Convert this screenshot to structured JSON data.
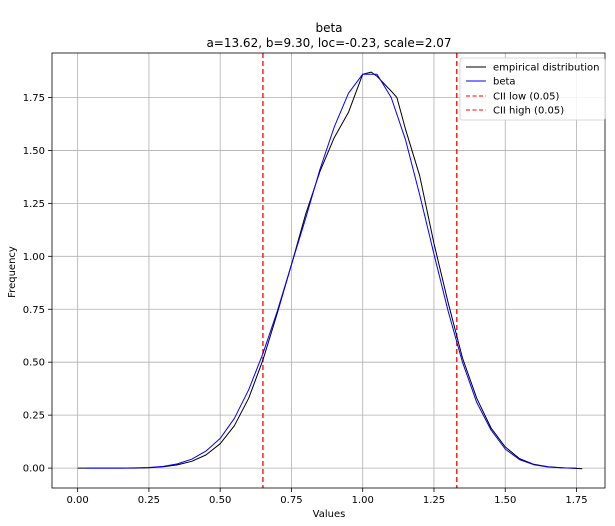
{
  "chart_data": {
    "type": "line",
    "title": "beta",
    "subtitle": "a=13.62, b=9.30, loc=-0.23, scale=2.07",
    "xlabel": "Values",
    "ylabel": "Frequency",
    "xlim": [
      -0.09,
      1.85
    ],
    "ylim": [
      -0.094,
      1.96
    ],
    "grid": true,
    "legend_position": "top-right",
    "x_ticks": [
      0.0,
      0.25,
      0.5,
      0.75,
      1.0,
      1.25,
      1.5,
      1.75
    ],
    "x_tick_labels": [
      "0.00",
      "0.25",
      "0.50",
      "0.75",
      "1.00",
      "1.25",
      "1.50",
      "1.75"
    ],
    "y_ticks": [
      0.0,
      0.25,
      0.5,
      0.75,
      1.0,
      1.25,
      1.5,
      1.75
    ],
    "y_tick_labels": [
      "0.00",
      "0.25",
      "0.50",
      "0.75",
      "1.00",
      "1.25",
      "1.50",
      "1.75"
    ],
    "series": [
      {
        "name": "empirical distribution",
        "color": "#000000",
        "style": "solid",
        "x": [
          0.0,
          0.05,
          0.1,
          0.15,
          0.2,
          0.25,
          0.3,
          0.35,
          0.4,
          0.45,
          0.5,
          0.55,
          0.6,
          0.65,
          0.7,
          0.75,
          0.8,
          0.85,
          0.9,
          0.95,
          1.0,
          1.03,
          1.05,
          1.1,
          1.12,
          1.15,
          1.2,
          1.25,
          1.3,
          1.35,
          1.4,
          1.45,
          1.5,
          1.55,
          1.6,
          1.65,
          1.7,
          1.77
        ],
        "y": [
          0.0,
          0.0,
          0.0,
          0.0,
          0.0,
          0.002,
          0.006,
          0.015,
          0.032,
          0.062,
          0.115,
          0.2,
          0.33,
          0.51,
          0.73,
          0.96,
          1.2,
          1.4,
          1.56,
          1.68,
          1.86,
          1.87,
          1.85,
          1.78,
          1.75,
          1.6,
          1.38,
          1.06,
          0.78,
          0.52,
          0.33,
          0.19,
          0.1,
          0.045,
          0.018,
          0.006,
          0.002,
          -0.003
        ]
      },
      {
        "name": "beta",
        "color": "#0000ff",
        "style": "solid",
        "x": [
          0.03,
          0.1,
          0.15,
          0.2,
          0.25,
          0.3,
          0.35,
          0.4,
          0.45,
          0.5,
          0.55,
          0.6,
          0.65,
          0.7,
          0.75,
          0.8,
          0.85,
          0.9,
          0.95,
          1.0,
          1.05,
          1.1,
          1.15,
          1.2,
          1.25,
          1.3,
          1.35,
          1.4,
          1.45,
          1.5,
          1.55,
          1.6,
          1.65,
          1.7,
          1.75
        ],
        "y": [
          0.0,
          0.0,
          0.0,
          0.001,
          0.003,
          0.008,
          0.02,
          0.042,
          0.08,
          0.14,
          0.235,
          0.37,
          0.54,
          0.74,
          0.96,
          1.18,
          1.41,
          1.61,
          1.77,
          1.86,
          1.86,
          1.75,
          1.55,
          1.29,
          1.01,
          0.74,
          0.5,
          0.31,
          0.18,
          0.09,
          0.04,
          0.016,
          0.005,
          0.001,
          0.0
        ]
      }
    ],
    "vlines": [
      {
        "name": "CII low (0.05)",
        "x": 0.65,
        "color": "#ff0000",
        "style": "dashed"
      },
      {
        "name": "CII high (0.05)",
        "x": 1.33,
        "color": "#ff0000",
        "style": "dashed"
      }
    ]
  }
}
